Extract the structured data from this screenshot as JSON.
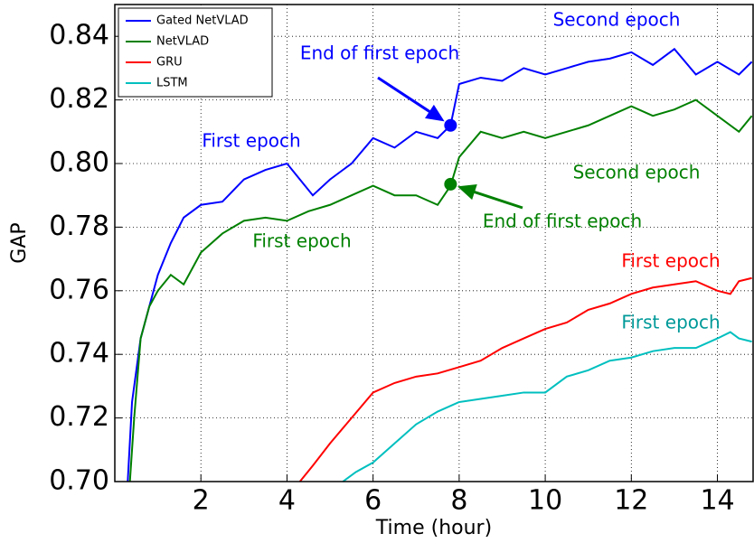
{
  "chart_data": {
    "type": "line",
    "xlabel": "Time (hour)",
    "ylabel": "GAP",
    "xlim": [
      0,
      14.85
    ],
    "ylim": [
      0.7,
      0.85
    ],
    "xticks": [
      2,
      4,
      6,
      8,
      10,
      12,
      14
    ],
    "yticks": [
      {
        "value": 0.7,
        "label": "0.70"
      },
      0.72,
      0.74,
      0.76,
      0.78,
      {
        "value": 0.8,
        "label": "0.80"
      },
      0.82,
      0.84
    ],
    "grid": true,
    "legend": "upper left",
    "series": [
      {
        "name": "Gated NetVLAD",
        "color": "#0000ff",
        "x": [
          0.3,
          0.4,
          0.6,
          0.8,
          1.0,
          1.3,
          1.6,
          2.0,
          2.5,
          3.0,
          3.5,
          4.0,
          4.3,
          4.6,
          5.0,
          5.5,
          6.0,
          6.5,
          7.0,
          7.5,
          7.8,
          8.0,
          8.5,
          9.0,
          9.5,
          10,
          10.5,
          11,
          11.5,
          12,
          12.5,
          13,
          13.5,
          14,
          14.5,
          14.8
        ],
        "values": [
          0.7,
          0.725,
          0.745,
          0.755,
          0.765,
          0.775,
          0.783,
          0.787,
          0.788,
          0.795,
          0.798,
          0.8,
          0.795,
          0.79,
          0.795,
          0.8,
          0.808,
          0.805,
          0.81,
          0.808,
          0.812,
          0.825,
          0.827,
          0.826,
          0.83,
          0.828,
          0.83,
          0.832,
          0.833,
          0.835,
          0.831,
          0.836,
          0.828,
          0.832,
          0.828,
          0.832
        ]
      },
      {
        "name": "NetVLAD",
        "color": "#008000",
        "x": [
          0.35,
          0.45,
          0.6,
          0.8,
          1.0,
          1.3,
          1.6,
          2.0,
          2.5,
          3.0,
          3.5,
          4.0,
          4.5,
          5.0,
          5.5,
          6.0,
          6.5,
          7.0,
          7.5,
          7.8,
          8.0,
          8.5,
          9.0,
          9.5,
          10,
          10.5,
          11,
          11.5,
          12,
          12.5,
          13,
          13.5,
          14,
          14.5,
          14.8
        ],
        "values": [
          0.7,
          0.72,
          0.745,
          0.755,
          0.76,
          0.765,
          0.762,
          0.772,
          0.778,
          0.782,
          0.783,
          0.782,
          0.785,
          0.787,
          0.79,
          0.793,
          0.79,
          0.79,
          0.787,
          0.793,
          0.802,
          0.81,
          0.808,
          0.81,
          0.808,
          0.81,
          0.812,
          0.815,
          0.818,
          0.815,
          0.817,
          0.82,
          0.815,
          0.81,
          0.815
        ]
      },
      {
        "name": "GRU",
        "color": "#ff0000",
        "x": [
          4.3,
          4.6,
          5.0,
          5.5,
          6.0,
          6.5,
          7.0,
          7.5,
          8.0,
          8.5,
          9.0,
          9.5,
          10,
          10.5,
          11,
          11.5,
          12,
          12.5,
          13,
          13.5,
          14,
          14.3,
          14.5,
          14.8
        ],
        "values": [
          0.7,
          0.705,
          0.712,
          0.72,
          0.728,
          0.731,
          0.733,
          0.734,
          0.736,
          0.738,
          0.742,
          0.745,
          0.748,
          0.75,
          0.754,
          0.756,
          0.759,
          0.761,
          0.762,
          0.763,
          0.76,
          0.759,
          0.763,
          0.764
        ]
      },
      {
        "name": "LSTM",
        "color": "#00bfbf",
        "x": [
          5.3,
          5.6,
          6.0,
          6.5,
          7.0,
          7.5,
          8.0,
          8.5,
          9.0,
          9.5,
          10,
          10.5,
          11,
          11.5,
          12,
          12.5,
          13,
          13.5,
          14,
          14.3,
          14.5,
          14.8
        ],
        "values": [
          0.7,
          0.703,
          0.706,
          0.712,
          0.718,
          0.722,
          0.725,
          0.726,
          0.727,
          0.728,
          0.728,
          0.733,
          0.735,
          0.738,
          0.739,
          0.741,
          0.742,
          0.742,
          0.745,
          0.747,
          0.745,
          0.744
        ]
      }
    ],
    "annotations": [
      {
        "text": "Second epoch",
        "color": "#0000ff"
      },
      {
        "text": "End of first epoch",
        "color": "#0000ff",
        "x": 7.8,
        "y": 0.812
      },
      {
        "text": "First epoch",
        "color": "#0000ff"
      },
      {
        "text": "Second epoch",
        "color": "#008000"
      },
      {
        "text": "End of first epoch",
        "color": "#008000",
        "x": 7.8,
        "y": 0.7935
      },
      {
        "text": "First epoch",
        "color": "#008000"
      },
      {
        "text": "First epoch",
        "color": "#ff0000"
      },
      {
        "text": "First epoch",
        "color": "#009999"
      }
    ]
  }
}
